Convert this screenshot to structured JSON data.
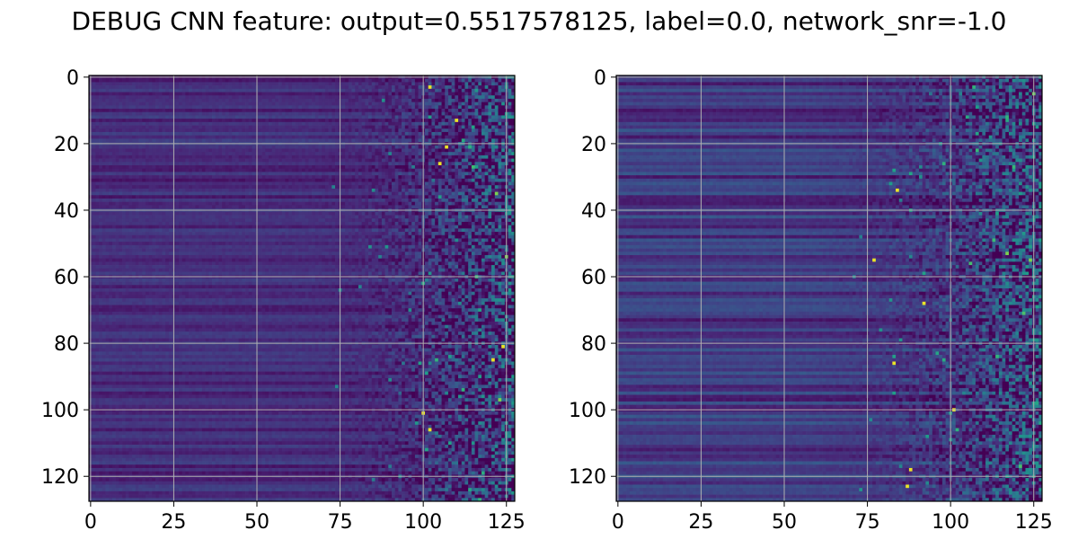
{
  "figure": {
    "title": "DEBUG CNN feature: output=0.5517578125, label=0.0, network_snr=-1.0"
  },
  "colormap": {
    "name": "viridis",
    "stops": [
      "#440154",
      "#482878",
      "#3e4989",
      "#31688e",
      "#26828e",
      "#1f9e89",
      "#35b779",
      "#6ece58",
      "#b5de2b",
      "#fde725"
    ]
  },
  "chart_data": [
    {
      "type": "heatmap",
      "panel": "left",
      "rows": 128,
      "cols": 128,
      "xlim": [
        -0.5,
        127.5
      ],
      "ylim": [
        127.5,
        -0.5
      ],
      "xticks": [
        0,
        25,
        50,
        75,
        100,
        125
      ],
      "yticks": [
        0,
        20,
        40,
        60,
        80,
        100,
        120
      ],
      "grid": true,
      "value_range": [
        0,
        1
      ],
      "noise_onset_column": 65,
      "description_of_values": "smooth low-valued horizontal bands for columns ~0-65, increasingly noisy high-variance values toward column 127",
      "bright_points": [
        [
          3,
          102
        ],
        [
          13,
          110
        ],
        [
          21,
          107
        ],
        [
          26,
          105
        ],
        [
          81,
          124
        ],
        [
          85,
          121
        ],
        [
          101,
          100
        ],
        [
          106,
          102
        ]
      ]
    },
    {
      "type": "heatmap",
      "panel": "right",
      "rows": 128,
      "cols": 128,
      "xlim": [
        -0.5,
        127.5
      ],
      "ylim": [
        127.5,
        -0.5
      ],
      "xticks": [
        0,
        25,
        50,
        75,
        100,
        125
      ],
      "yticks": [
        0,
        20,
        40,
        60,
        80,
        100,
        120
      ],
      "grid": true,
      "value_range": [
        0,
        1
      ],
      "noise_onset_column": 60,
      "description_of_values": "stronger horizontal striping on the left, noisy high-variance values toward column 127",
      "bright_points": [
        [
          34,
          84
        ],
        [
          55,
          77
        ],
        [
          68,
          92
        ],
        [
          86,
          83
        ],
        [
          100,
          101
        ],
        [
          118,
          88
        ],
        [
          123,
          87
        ]
      ]
    }
  ]
}
